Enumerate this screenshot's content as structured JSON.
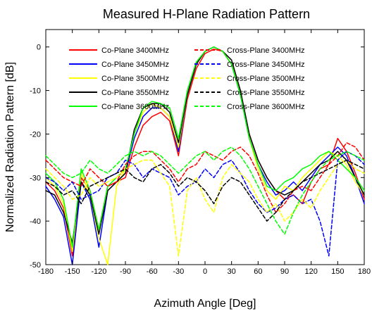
{
  "colors": {
    "background": "#ffffff",
    "plot_frame": "#000000",
    "series_3400": "#ff0000",
    "series_3450": "#0000ff",
    "series_3500": "#ffff00",
    "series_3550": "#000000",
    "series_3600": "#00ff00"
  },
  "chart_data": {
    "type": "line",
    "title": "Measured H-Plane Radiation Pattern",
    "xlabel": "Azimuth Angle [Deg]",
    "ylabel": "Normalized Radiation Pattern [dB]",
    "xlim": [
      -180,
      180
    ],
    "ylim": [
      -50,
      0
    ],
    "xticks": [
      "-180",
      "-150",
      "-120",
      "-90",
      "-60",
      "-30",
      "0",
      "30",
      "60",
      "90",
      "120",
      "150",
      "180"
    ],
    "yticks": [
      "-50",
      "-40",
      "-30",
      "-20",
      "-10",
      "0"
    ],
    "grid": false,
    "legend": {
      "position": "top",
      "columns": 2,
      "items": [
        "Co-Plane 3400MHz",
        "Cross-Plane 3400MHz",
        "Co-Plane 3450MHz",
        "Cross-Plane 3450MHz",
        "Co-Plane 3500MHz",
        "Cross-Plane 3500MHz",
        "Co-Plane 3550MHz",
        "Cross-Plane 3550MHz",
        "Co-Plane 3600MHz",
        "Cross-Plane 3600MHz"
      ]
    },
    "x": [
      -180,
      -170,
      -160,
      -150,
      -140,
      -130,
      -120,
      -110,
      -100,
      -90,
      -80,
      -70,
      -60,
      -50,
      -40,
      -30,
      -20,
      -10,
      0,
      10,
      20,
      30,
      40,
      50,
      60,
      70,
      80,
      90,
      100,
      110,
      120,
      130,
      140,
      150,
      160,
      170,
      180
    ],
    "series": [
      {
        "name": "Co-Plane 3400MHz",
        "color": "#ff0000",
        "dash": "solid",
        "values": [
          -31,
          -33,
          -37,
          -48,
          -30,
          -33,
          -42,
          -32,
          -31,
          -30,
          -23,
          -18,
          -16,
          -15,
          -17,
          -25,
          -12,
          -5,
          -1.5,
          -0.5,
          -1,
          -4,
          -10,
          -20,
          -26,
          -30,
          -33,
          -35,
          -34,
          -36,
          -31,
          -28,
          -27,
          -21,
          -24,
          -29,
          -35
        ]
      },
      {
        "name": "Co-Plane 3450MHz",
        "color": "#0000ff",
        "dash": "solid",
        "values": [
          -32,
          -35,
          -39,
          -50,
          -31,
          -35,
          -46,
          -33,
          -31,
          -29,
          -21,
          -16,
          -14,
          -14,
          -16,
          -24,
          -11,
          -4,
          -1,
          0,
          -1,
          -4,
          -11,
          -21,
          -27,
          -31,
          -34,
          -33,
          -31,
          -33,
          -30,
          -27,
          -25,
          -23,
          -25,
          -30,
          -36
        ]
      },
      {
        "name": "Co-Plane 3500MHz",
        "color": "#ffff00",
        "dash": "solid",
        "values": [
          -30,
          -32,
          -36,
          -47,
          -29,
          -34,
          -44,
          -50,
          -32,
          -28,
          -20,
          -15,
          -13,
          -14,
          -16,
          -23,
          -11,
          -4,
          -1,
          0,
          -1,
          -4,
          -10,
          -21,
          -28,
          -33,
          -35,
          -32,
          -33,
          -30,
          -28,
          -26,
          -24,
          -25,
          -27,
          -31,
          -34
        ]
      },
      {
        "name": "Co-Plane 3550MHz",
        "color": "#000000",
        "dash": "solid",
        "values": [
          -33,
          -34,
          -38,
          -45,
          -31,
          -34,
          -43,
          -33,
          -31,
          -29,
          -19,
          -14,
          -13,
          -13,
          -15,
          -22,
          -11,
          -4,
          -1,
          0,
          -1,
          -3,
          -10,
          -20,
          -26,
          -30,
          -33,
          -34,
          -33,
          -31,
          -29,
          -27,
          -26,
          -24,
          -26,
          -30,
          -34
        ]
      },
      {
        "name": "Co-Plane 3600MHz",
        "color": "#00ff00",
        "dash": "solid",
        "values": [
          -29,
          -31,
          -35,
          -46,
          -28,
          -33,
          -42,
          -32,
          -30,
          -28,
          -20,
          -14,
          -12.5,
          -13,
          -14,
          -21,
          -10,
          -3.5,
          -1,
          0,
          -1,
          -4,
          -11,
          -21,
          -27,
          -32,
          -33,
          -31,
          -30,
          -28,
          -27,
          -25,
          -24,
          -26,
          -28,
          -30,
          -33
        ]
      },
      {
        "name": "Cross-Plane 3400MHz",
        "color": "#ff0000",
        "dash": "dashed",
        "values": [
          -26,
          -28,
          -30,
          -31,
          -32,
          -28,
          -30,
          -32,
          -31,
          -27,
          -25,
          -24,
          -24,
          -26,
          -28,
          -31,
          -28,
          -27,
          -24,
          -25,
          -26,
          -24,
          -23,
          -25,
          -29,
          -34,
          -38,
          -36,
          -33,
          -32,
          -33,
          -30,
          -27,
          -25,
          -22,
          -23,
          -26
        ]
      },
      {
        "name": "Cross-Plane 3450MHz",
        "color": "#0000ff",
        "dash": "dashed",
        "values": [
          -30,
          -31,
          -33,
          -31,
          -35,
          -34,
          -33,
          -30,
          -29,
          -26,
          -27,
          -30,
          -28,
          -29,
          -30,
          -34,
          -32,
          -31,
          -28,
          -30,
          -27,
          -26,
          -29,
          -33,
          -36,
          -38,
          -37,
          -35,
          -34,
          -36,
          -35,
          -40,
          -48,
          -26,
          -24,
          -25,
          -27
        ]
      },
      {
        "name": "Cross-Plane 3500MHz",
        "color": "#ffff00",
        "dash": "dashed",
        "values": [
          -28,
          -30,
          -32,
          -35,
          -34,
          -30,
          -32,
          -31,
          -30,
          -28,
          -27,
          -26,
          -26,
          -29,
          -32,
          -48,
          -33,
          -30,
          -35,
          -38,
          -30,
          -27,
          -29,
          -31,
          -35,
          -38,
          -36,
          -40,
          -38,
          -35,
          -37,
          -33,
          -30,
          -27,
          -26,
          -28,
          -29
        ]
      },
      {
        "name": "Cross-Plane 3550MHz",
        "color": "#000000",
        "dash": "dashed",
        "values": [
          -31,
          -32,
          -34,
          -33,
          -36,
          -32,
          -31,
          -30,
          -29,
          -28,
          -30,
          -31,
          -28,
          -27,
          -29,
          -32,
          -30,
          -31,
          -33,
          -36,
          -32,
          -30,
          -31,
          -34,
          -37,
          -40,
          -38,
          -35,
          -33,
          -31,
          -30,
          -29,
          -28,
          -27,
          -26,
          -27,
          -28
        ]
      },
      {
        "name": "Cross-Plane 3600MHz",
        "color": "#00ff00",
        "dash": "dashed",
        "values": [
          -25,
          -27,
          -29,
          -30,
          -29,
          -26,
          -28,
          -29,
          -27,
          -25,
          -24,
          -25,
          -24,
          -25,
          -27,
          -29,
          -27,
          -25,
          -24,
          -26,
          -24,
          -23,
          -25,
          -28,
          -32,
          -36,
          -40,
          -43,
          -38,
          -34,
          -31,
          -28,
          -26,
          -25,
          -24,
          -25,
          -26
        ]
      }
    ]
  }
}
